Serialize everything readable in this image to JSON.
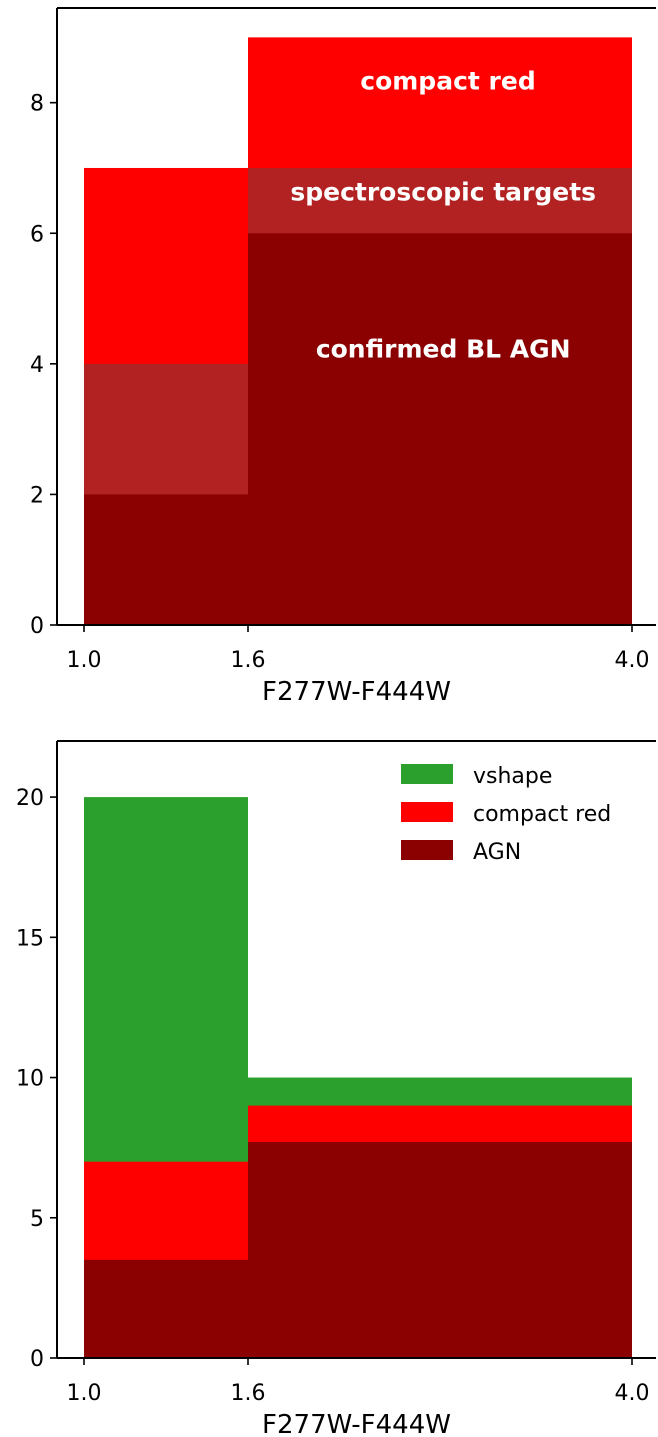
{
  "chart_data": [
    {
      "type": "bar",
      "subtype": "stacked-histogram",
      "title": "",
      "xlabel": "F277W-F444W",
      "ylabel": "",
      "bin_edges": [
        1.0,
        1.6,
        4.0
      ],
      "xticks": [
        1.0,
        1.6,
        4.0
      ],
      "xtick_labels": [
        "1.0",
        "1.6",
        "4.0"
      ],
      "ylim": [
        0,
        9.45
      ],
      "yticks": [
        0,
        2,
        4,
        6,
        8
      ],
      "ytick_labels": [
        "0",
        "2",
        "4",
        "6",
        "8"
      ],
      "grid": false,
      "legend": null,
      "series": [
        {
          "name": "compact red",
          "values": [
            7,
            9
          ],
          "color": "#ff0000"
        },
        {
          "name": "spectroscopic targets",
          "values": [
            4,
            7
          ],
          "color": "#b22222"
        },
        {
          "name": "confirmed BL AGN",
          "values": [
            2,
            6
          ],
          "color": "#8b0000"
        }
      ],
      "annotations": [
        {
          "text": "compact red",
          "x": 2.85,
          "y": 8.2
        },
        {
          "text": "spectroscopic targets",
          "x": 2.82,
          "y": 6.5
        },
        {
          "text": "confirmed BL AGN",
          "x": 2.82,
          "y": 4.1
        }
      ]
    },
    {
      "type": "bar",
      "subtype": "stacked-histogram",
      "title": "",
      "xlabel": "F277W-F444W",
      "ylabel": "",
      "bin_edges": [
        1.0,
        1.6,
        4.0
      ],
      "xticks": [
        1.0,
        1.6,
        4.0
      ],
      "xtick_labels": [
        "1.0",
        "1.6",
        "4.0"
      ],
      "ylim": [
        0,
        22
      ],
      "yticks": [
        0,
        5,
        10,
        15,
        20
      ],
      "ytick_labels": [
        "0",
        "5",
        "10",
        "15",
        "20"
      ],
      "grid": false,
      "legend": "top-right",
      "series": [
        {
          "name": "vshape",
          "values": [
            20,
            10
          ],
          "color": "#2ca02c"
        },
        {
          "name": "compact red",
          "values": [
            7,
            9
          ],
          "color": "#ff0000"
        },
        {
          "name": "AGN",
          "values": [
            3.5,
            7.7
          ],
          "color": "#8b0000"
        }
      ]
    }
  ]
}
